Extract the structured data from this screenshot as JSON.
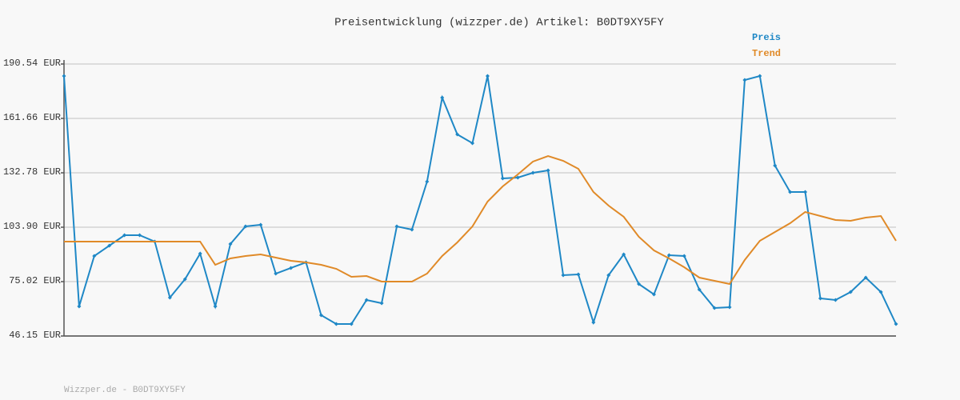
{
  "chart_data": {
    "type": "line",
    "title": "Preisentwicklung (wizzper.de) Artikel: B0DT9XY5FY",
    "footer": "Wizzper.de - B0DT9XY5FY",
    "categories": [
      null,
      null,
      null,
      null,
      null,
      null,
      null,
      null,
      null,
      null,
      null,
      null,
      null,
      null,
      null,
      null,
      null,
      null,
      null,
      null,
      null,
      null,
      null,
      null,
      null,
      null,
      null,
      null,
      null,
      null,
      null,
      null,
      null,
      null,
      null,
      null,
      null,
      null,
      null,
      null,
      null,
      null,
      null,
      null,
      null,
      null,
      null,
      null,
      null,
      null,
      null,
      null,
      null,
      null,
      null,
      null
    ],
    "series": [
      {
        "name": "Preis",
        "color": "#1f88c6",
        "markers": true,
        "values": [
          184.17,
          61.86,
          88.62,
          94.14,
          99.66,
          99.66,
          96.26,
          66.53,
          76.3,
          89.89,
          61.86,
          94.99,
          104.33,
          105.18,
          79.27,
          82.25,
          85.22,
          57.19,
          52.52,
          52.52,
          65.26,
          63.56,
          104.33,
          102.63,
          128.11,
          172.7,
          153.17,
          148.5,
          184.17,
          129.81,
          130.24,
          132.78,
          134.06,
          78.43,
          78.85,
          53.37,
          78.43,
          89.47,
          73.75,
          68.23,
          89.04,
          88.62,
          70.78,
          61.01,
          61.44,
          182.05,
          184.17,
          136.61,
          122.59,
          122.59,
          66.11,
          65.26,
          69.51,
          77.15,
          69.51,
          52.52
        ]
      },
      {
        "name": "Trend",
        "color": "#e08a28",
        "markers": false,
        "values": [
          96.26,
          96.26,
          96.26,
          96.26,
          96.26,
          96.26,
          96.26,
          96.26,
          96.26,
          96.26,
          83.95,
          87.34,
          88.62,
          89.47,
          87.77,
          86.07,
          85.22,
          83.95,
          81.82,
          77.58,
          78.0,
          75.03,
          75.03,
          75.03,
          79.27,
          88.62,
          95.84,
          104.33,
          117.5,
          125.56,
          131.94,
          138.73,
          141.7,
          139.15,
          134.91,
          122.59,
          115.37,
          109.43,
          98.81,
          91.59,
          87.34,
          82.67,
          77.15,
          75.45,
          73.75,
          86.49,
          96.69,
          101.36,
          106.03,
          111.98,
          109.85,
          107.73,
          107.3,
          109.0,
          109.85,
          96.69
        ]
      }
    ],
    "ylim": [
      46.15,
      190.54
    ],
    "yticks": [
      {
        "value": 46.15,
        "label": "46.15 EUR"
      },
      {
        "value": 75.02,
        "label": "75.02 EUR"
      },
      {
        "value": 103.9,
        "label": "103.90 EUR"
      },
      {
        "value": 132.78,
        "label": "132.78 EUR"
      },
      {
        "value": 161.66,
        "label": "161.66 EUR"
      },
      {
        "value": 190.54,
        "label": "190.54 EUR"
      }
    ],
    "grid": true,
    "legend": "top-right"
  }
}
